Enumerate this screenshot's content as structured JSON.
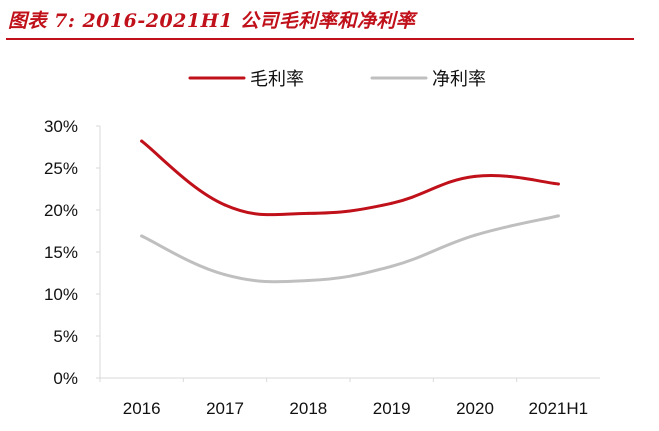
{
  "figure": {
    "title": "图表 7: 2016-2021H1 公司毛利率和净利率"
  },
  "chart_data": {
    "type": "line",
    "categories": [
      "2016",
      "2017",
      "2018",
      "2019",
      "2020",
      "2021H1"
    ],
    "series": [
      {
        "name": "毛利率",
        "values": [
          28.2,
          20.6,
          19.6,
          20.8,
          24.0,
          23.1
        ],
        "color": "#c0101a"
      },
      {
        "name": "净利率",
        "values": [
          16.9,
          12.3,
          11.6,
          13.3,
          17.0,
          19.3
        ],
        "color": "#bfbfbf"
      }
    ],
    "y_ticks": [
      "0%",
      "5%",
      "10%",
      "15%",
      "20%",
      "25%",
      "30%"
    ],
    "ylim": [
      0,
      30
    ],
    "grid": false,
    "legend_position": "top-center",
    "smooth": true
  }
}
